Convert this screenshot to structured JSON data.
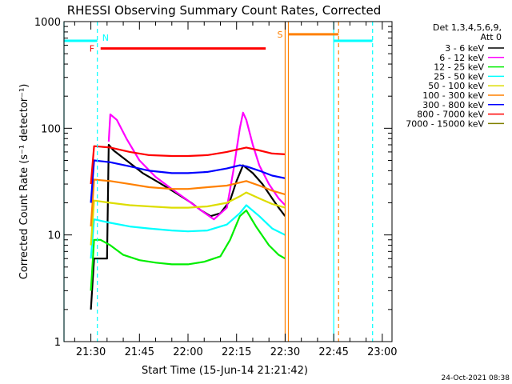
{
  "chart_data": {
    "type": "line",
    "title": "RHESSI Observing Summary Count Rates, Corrected",
    "xlabel": "Start Time (15-Jun-14 21:21:42)",
    "ylabel": "Corrected Count Rate (s⁻¹ detector⁻¹)",
    "xlim": [
      "21:21:42",
      "23:03:00"
    ],
    "ylim": [
      1,
      1000
    ],
    "yscale": "log",
    "x_ticks": [
      "21:30",
      "21:45",
      "22:00",
      "22:15",
      "22:30",
      "22:45",
      "23:00"
    ],
    "y_ticks": [
      {
        "value": 1,
        "label": "1"
      },
      {
        "value": 10,
        "label": "10"
      },
      {
        "value": 100,
        "label": "100"
      },
      {
        "value": 1000,
        "label": "1000"
      }
    ],
    "legend": {
      "placement": "right",
      "header": [
        "Det 1,3,4,5,6,9,",
        "Att 0"
      ],
      "entries": [
        {
          "label": "3 - 6 keV",
          "color": "#000000"
        },
        {
          "label": "6 - 12 keV",
          "color": "#ff00ff"
        },
        {
          "label": "12 - 25 keV",
          "color": "#00ee00"
        },
        {
          "label": "25 - 50 keV",
          "color": "#00ffff"
        },
        {
          "label": "50 - 100 keV",
          "color": "#dddd00"
        },
        {
          "label": "100 - 300 keV",
          "color": "#ff8000"
        },
        {
          "label": "300 - 800 keV",
          "color": "#0000ff"
        },
        {
          "label": "800 - 7000 keV",
          "color": "#ff0000"
        },
        {
          "label": "7000 - 15000 keV",
          "color": "#808000"
        }
      ]
    },
    "series": [
      {
        "name": "3 - 6 keV",
        "color": "#000000",
        "x": [
          "21:30:00",
          "21:31:00",
          "21:33:00",
          "21:35:00",
          "21:35:30",
          "21:37:00",
          "21:41:00",
          "21:46:00",
          "21:51:00",
          "21:56:00",
          "22:01:00",
          "22:04:00",
          "22:07:00",
          "22:10:00",
          "22:13:00",
          "22:15:00",
          "22:17:00",
          "22:20:00",
          "22:23:00",
          "22:26:00",
          "22:28:00",
          "22:30:00"
        ],
        "y": [
          2,
          6,
          6,
          6,
          70,
          62,
          50,
          38,
          31,
          25,
          20,
          17,
          15,
          16,
          21,
          32,
          45,
          38,
          30,
          22,
          18,
          15
        ]
      },
      {
        "name": "6 - 12 keV",
        "color": "#ff00ff",
        "x": [
          "21:35:30",
          "21:36:00",
          "21:38:00",
          "21:41:00",
          "21:45:00",
          "21:50:00",
          "21:55:00",
          "22:00:00",
          "22:04:00",
          "22:08:00",
          "22:12:00",
          "22:14:00",
          "22:16:00",
          "22:17:00",
          "22:18:00",
          "22:20:00",
          "22:22:00",
          "22:25:00",
          "22:28:00",
          "22:30:00"
        ],
        "y": [
          75,
          135,
          120,
          80,
          50,
          35,
          27,
          21,
          17,
          14,
          18,
          40,
          100,
          140,
          120,
          70,
          45,
          30,
          22,
          19
        ]
      },
      {
        "name": "12 - 25 keV",
        "color": "#00ee00",
        "x": [
          "21:30:00",
          "21:31:00",
          "21:33:00",
          "21:36:00",
          "21:40:00",
          "21:45:00",
          "21:50:00",
          "21:55:00",
          "22:00:00",
          "22:05:00",
          "22:10:00",
          "22:13:00",
          "22:16:00",
          "22:18:00",
          "22:21:00",
          "22:25:00",
          "22:28:00",
          "22:30:00"
        ],
        "y": [
          3,
          9,
          9,
          8,
          6.5,
          5.8,
          5.5,
          5.3,
          5.3,
          5.6,
          6.3,
          9,
          15,
          17,
          12,
          8,
          6.5,
          6
        ]
      },
      {
        "name": "25 - 50 keV",
        "color": "#00ffff",
        "x": [
          "21:30:00",
          "21:31:00",
          "21:36:00",
          "21:42:00",
          "21:48:00",
          "21:55:00",
          "22:00:00",
          "22:06:00",
          "22:12:00",
          "22:16:00",
          "22:18:00",
          "22:22:00",
          "22:26:00",
          "22:30:00"
        ],
        "y": [
          6,
          14,
          13,
          12,
          11.5,
          11,
          10.8,
          11,
          12.5,
          16,
          19,
          15,
          11.5,
          10
        ]
      },
      {
        "name": "50 - 100 keV",
        "color": "#dddd00",
        "x": [
          "21:30:00",
          "21:31:00",
          "21:36:00",
          "21:42:00",
          "21:48:00",
          "21:55:00",
          "22:00:00",
          "22:06:00",
          "22:12:00",
          "22:16:00",
          "22:18:00",
          "22:22:00",
          "22:26:00",
          "22:30:00"
        ],
        "y": [
          8,
          21,
          20,
          19,
          18.5,
          18,
          18,
          18.5,
          20,
          23,
          25,
          22,
          19.5,
          18
        ]
      },
      {
        "name": "100 - 300 keV",
        "color": "#ff8000",
        "x": [
          "21:30:00",
          "21:31:00",
          "21:36:00",
          "21:42:00",
          "21:48:00",
          "21:55:00",
          "22:00:00",
          "22:06:00",
          "22:12:00",
          "22:16:00",
          "22:18:00",
          "22:22:00",
          "22:26:00",
          "22:30:00"
        ],
        "y": [
          12,
          33,
          32,
          30,
          28,
          27,
          27,
          28,
          29,
          31,
          32,
          29,
          26,
          24
        ]
      },
      {
        "name": "300 - 800 keV",
        "color": "#0000ff",
        "x": [
          "21:30:00",
          "21:31:00",
          "21:36:00",
          "21:42:00",
          "21:48:00",
          "21:55:00",
          "22:00:00",
          "22:06:00",
          "22:12:00",
          "22:16:00",
          "22:18:00",
          "22:22:00",
          "22:26:00",
          "22:30:00"
        ],
        "y": [
          20,
          50,
          48,
          44,
          40,
          38,
          38,
          39,
          42,
          45,
          44,
          40,
          36,
          34
        ]
      },
      {
        "name": "800 - 7000 keV",
        "color": "#ff0000",
        "x": [
          "21:30:00",
          "21:31:00",
          "21:36:00",
          "21:42:00",
          "21:48:00",
          "21:55:00",
          "22:00:00",
          "22:06:00",
          "22:12:00",
          "22:16:00",
          "22:18:00",
          "22:22:00",
          "22:26:00",
          "22:30:00"
        ],
        "y": [
          30,
          68,
          66,
          60,
          56,
          55,
          55,
          56,
          60,
          64,
          66,
          62,
          58,
          57
        ]
      }
    ],
    "segments": [
      {
        "label": "",
        "color": "#00ffff",
        "x_start": "21:21:42",
        "x_end": "21:32:00",
        "y": 660
      },
      {
        "label": "",
        "color": "#00ffff",
        "x_start": "22:45:00",
        "x_end": "22:57:00",
        "y": 660
      },
      {
        "label": "F",
        "color": "#ff0000",
        "x_start": "21:33:00",
        "x_end": "22:24:00",
        "y": 560
      },
      {
        "label": "S",
        "color": "#ff8000",
        "x_start": "22:31:00",
        "x_end": "22:46:30",
        "y": 760
      }
    ],
    "vertical_lines": [
      {
        "x": "21:21:42",
        "color": "#00ffff",
        "style": "solid"
      },
      {
        "x": "21:32:00",
        "color": "#00ffff",
        "style": "dashed",
        "label": "N"
      },
      {
        "x": "22:30:00",
        "color": "#ff8000",
        "style": "solid"
      },
      {
        "x": "22:31:00",
        "color": "#ff8000",
        "style": "solid"
      },
      {
        "x": "22:45:00",
        "color": "#00ffff",
        "style": "solid"
      },
      {
        "x": "22:46:30",
        "color": "#ff8000",
        "style": "dashed"
      },
      {
        "x": "22:57:00",
        "color": "#00ffff",
        "style": "dashed"
      }
    ]
  },
  "footer": {
    "timestamp": "24-Oct-2021 08:38"
  }
}
